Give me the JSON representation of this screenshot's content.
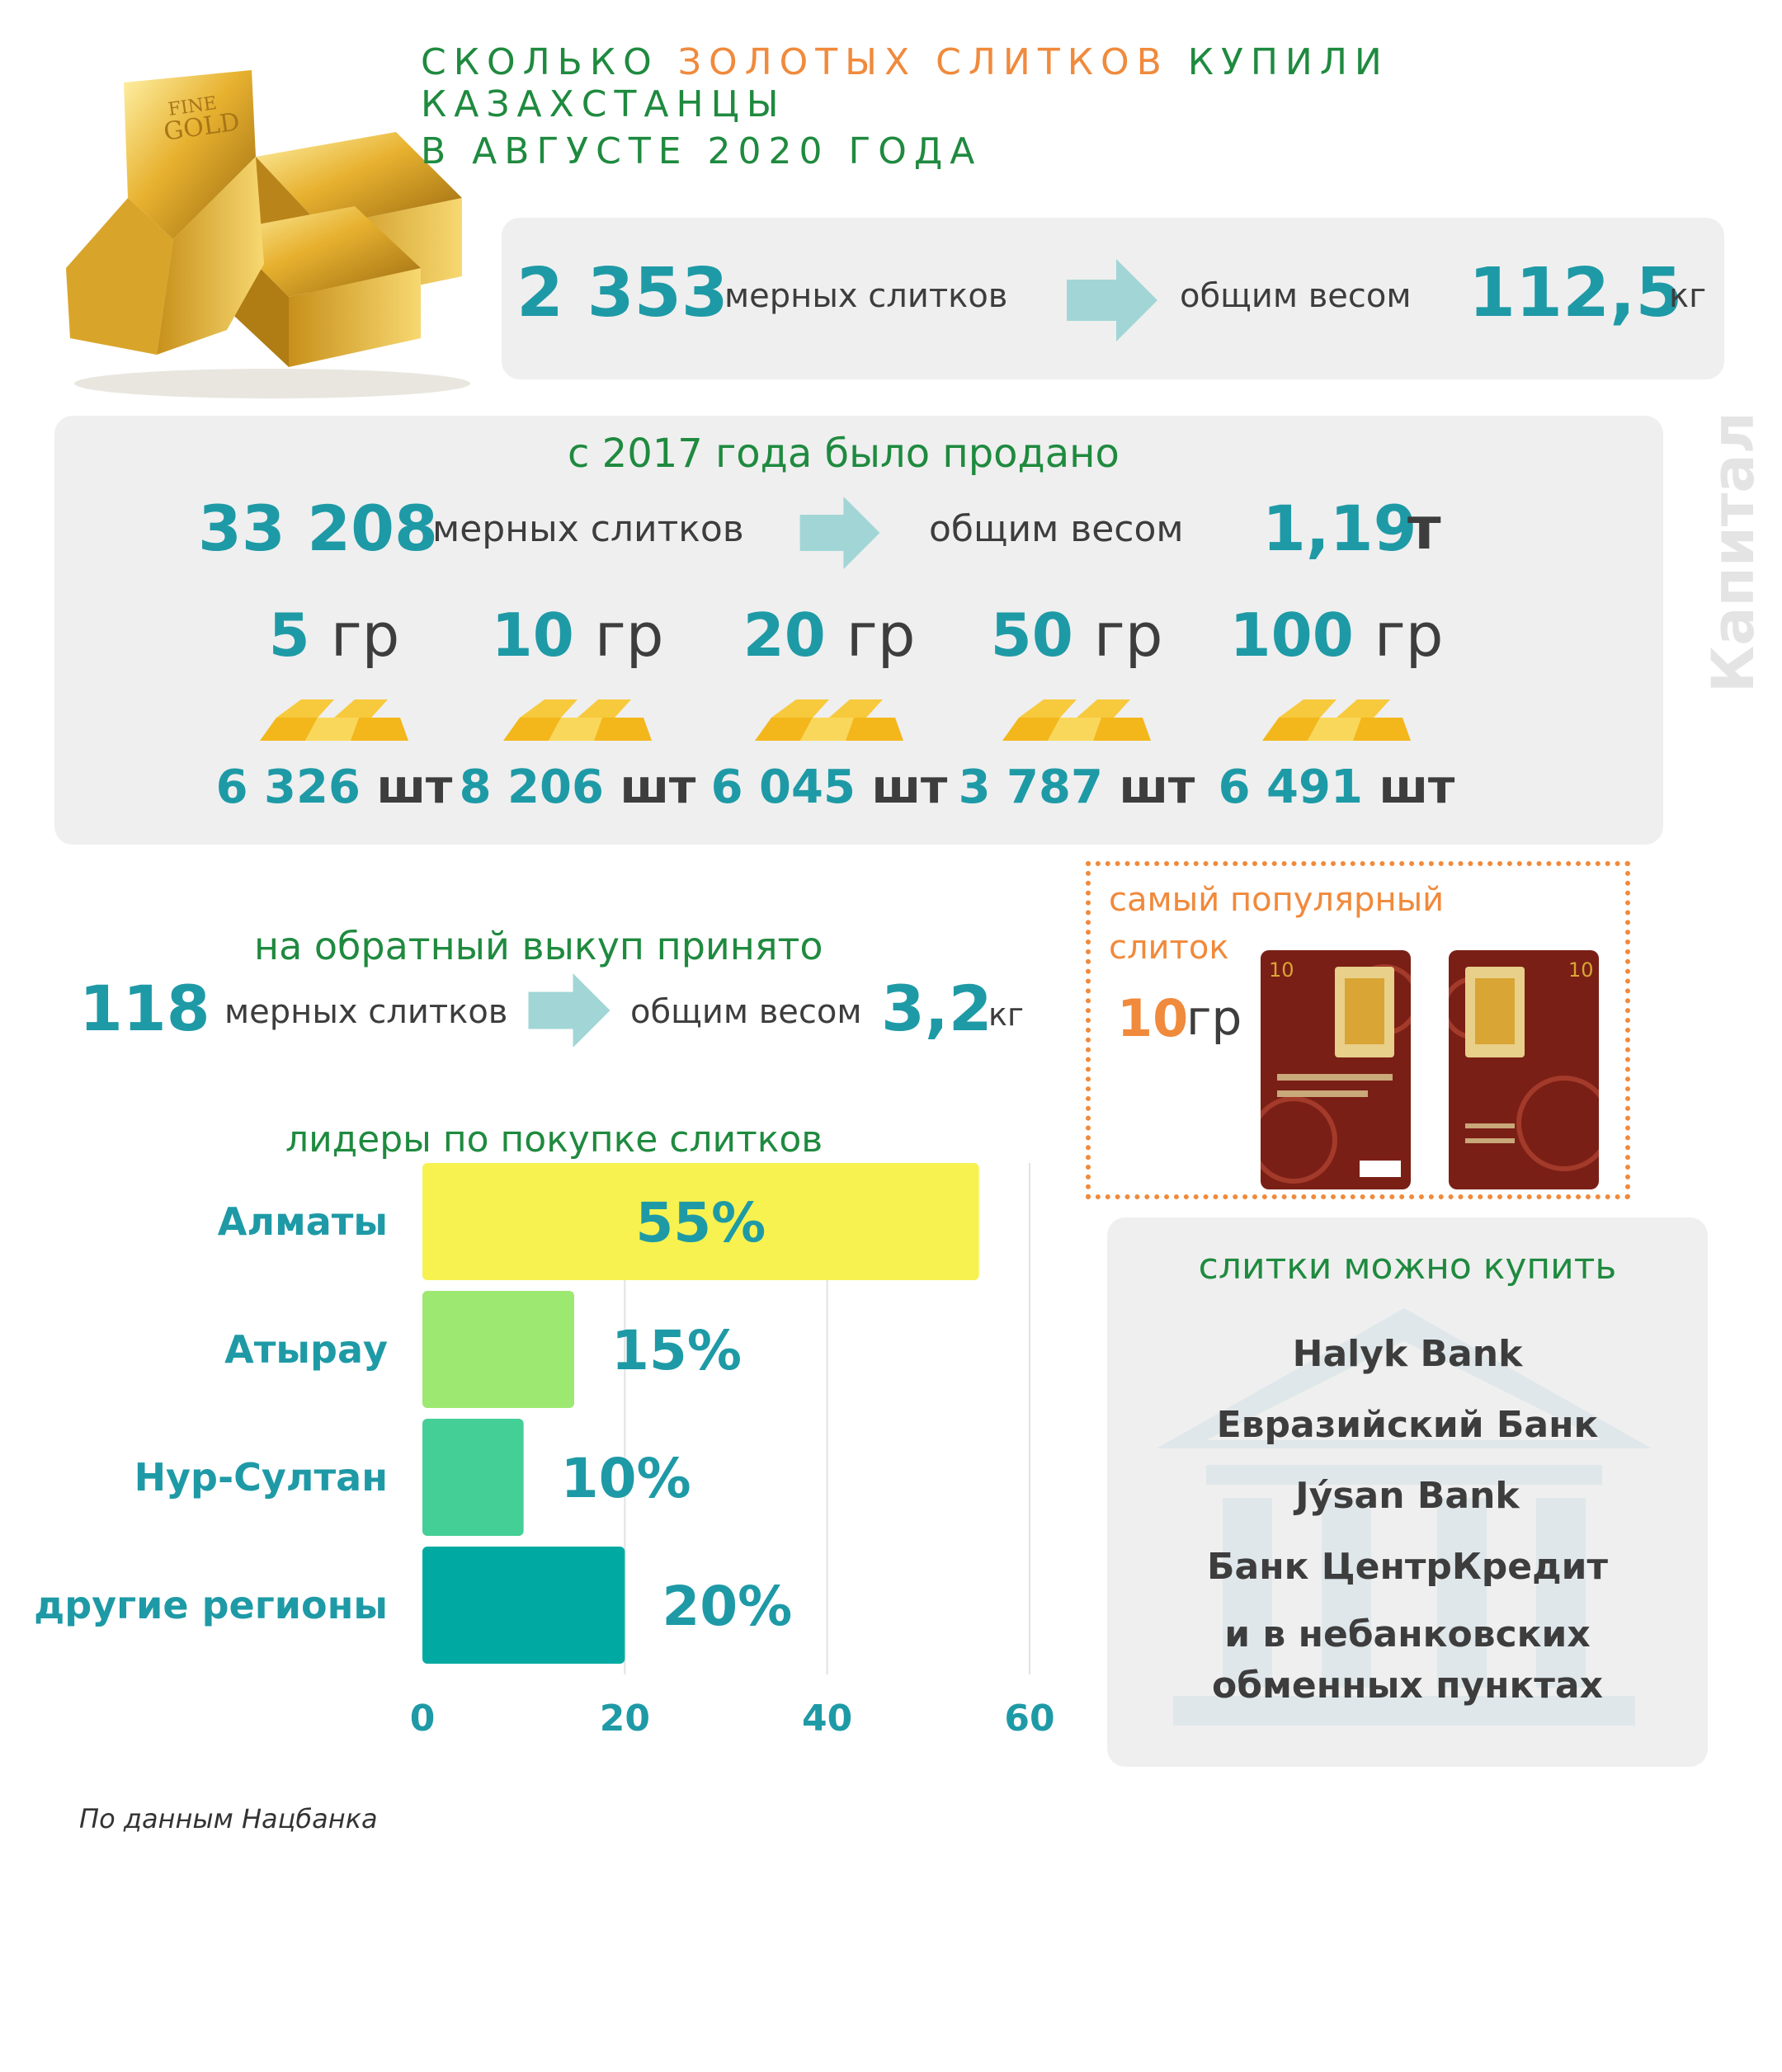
{
  "title": {
    "part1": "СКОЛЬКО ",
    "part2": "ЗОЛОТЫХ СЛИТКОВ",
    "part3": " КУПИЛИ КАЗАХСТАНЦЫ",
    "line2": "В АВГУСТЕ 2020 ГОДА"
  },
  "august": {
    "count": "2 353",
    "count_label": "мерных слитков",
    "weight_label": "общим весом",
    "weight": "112,5",
    "unit": "кг"
  },
  "since2017": {
    "heading": "с 2017 года было продано",
    "count": "33 208",
    "count_label": "мерных слитков",
    "weight_label": "общим весом",
    "weight": "1,19",
    "unit": "т",
    "denominations": [
      {
        "num": "5",
        "unit": "гр",
        "pcs": "6 326",
        "pcs_unit": "шт"
      },
      {
        "num": "10",
        "unit": "гр",
        "pcs": "8 206",
        "pcs_unit": "шт"
      },
      {
        "num": "20",
        "unit": "гр",
        "pcs": "6 045",
        "pcs_unit": "шт"
      },
      {
        "num": "50",
        "unit": "гр",
        "pcs": "3 787",
        "pcs_unit": "шт"
      },
      {
        "num": "100",
        "unit": "гр",
        "pcs": "6 491",
        "pcs_unit": "шт"
      }
    ]
  },
  "buyback": {
    "heading": "на обратный выкуп принято",
    "count": "118",
    "count_label": "мерных слитков",
    "weight_label": "общим весом",
    "weight": "3,2",
    "unit": "кг"
  },
  "popular": {
    "line1": "самый популярный",
    "line2": "слиток",
    "num": "10",
    "unit": "гр",
    "card_value": "10"
  },
  "where": {
    "heading": "слитки можно купить",
    "items": [
      "Halyk Bank",
      "Евразийский Банк",
      "Jýsan Bank",
      "Банк ЦентрКредит",
      "и в небанковских",
      "обменных пунктах"
    ]
  },
  "watermark": "Капитал",
  "source": "По данным  Нацбанка",
  "chart_data": {
    "type": "bar",
    "orientation": "horizontal",
    "title": "лидеры по покупке слитков",
    "categories": [
      "Алматы",
      "Атырау",
      "Нур-Султан",
      "другие регионы"
    ],
    "values": [
      55,
      15,
      10,
      20
    ],
    "value_labels": [
      "55%",
      "15%",
      "10%",
      "20%"
    ],
    "colors": [
      "#f7f250",
      "#9de870",
      "#44cf96",
      "#00aaa2"
    ],
    "xlim": [
      0,
      60
    ],
    "xticks": [
      "0",
      "20",
      "40",
      "60"
    ],
    "grid": true
  }
}
